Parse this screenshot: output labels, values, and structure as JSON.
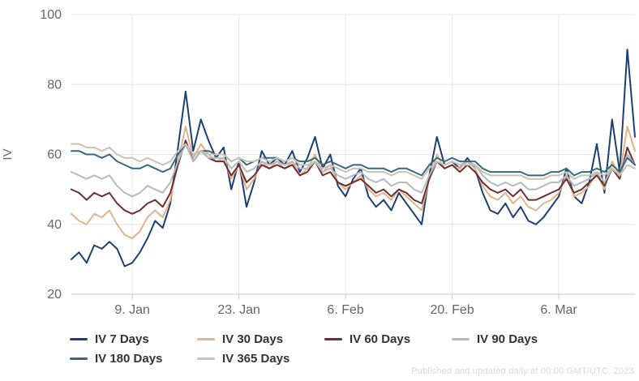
{
  "watermark": "Published and updated daily at 00:00 GMT/UTC, 2023",
  "theme": {
    "background": "#ffffff",
    "grid_color": "#e6e6e6",
    "axis_line_color": "#c8c8c8",
    "tick_color": "#c8c8c8",
    "axis_text_color": "#666666",
    "legend_text_color": "#333333",
    "watermark_color": "#d8d8d8"
  },
  "chart_data": {
    "type": "line",
    "title": "",
    "xlabel": "",
    "ylabel": "IV",
    "ylim": [
      20,
      100
    ],
    "yticks": [
      20,
      40,
      60,
      80,
      100
    ],
    "grid": true,
    "legend_position": "bottom-left",
    "x_count": 75,
    "x_unit": "days (1. Jan – 16. Mar)",
    "xticks": [
      {
        "index": 8,
        "label": "9. Jan"
      },
      {
        "index": 22,
        "label": "23. Jan"
      },
      {
        "index": 36,
        "label": "6. Feb"
      },
      {
        "index": 50,
        "label": "20. Feb"
      },
      {
        "index": 64,
        "label": "6. Mar"
      }
    ],
    "series": [
      {
        "name": "IV 7 Days",
        "color": "#1c3f73",
        "values": [
          30,
          32,
          29,
          34,
          33,
          35,
          33,
          28,
          29,
          32,
          36,
          41,
          39,
          46,
          62,
          78,
          61,
          70,
          64,
          59,
          62,
          50,
          58,
          45,
          52,
          61,
          57,
          59,
          57,
          61,
          55,
          59,
          65,
          56,
          60,
          51,
          48,
          53,
          56,
          48,
          45,
          47,
          44,
          49,
          46,
          43,
          40,
          54,
          65,
          57,
          58,
          56,
          59,
          56,
          49,
          44,
          43,
          46,
          42,
          45,
          41,
          40,
          42,
          45,
          48,
          56,
          48,
          46,
          52,
          63,
          49,
          70,
          55,
          90,
          65
        ]
      },
      {
        "name": "IV 30 Days",
        "color": "#e2b38b",
        "values": [
          43,
          41,
          40,
          43,
          42,
          44,
          40,
          37,
          36,
          38,
          42,
          44,
          42,
          47,
          58,
          68,
          59,
          63,
          60,
          58,
          59,
          53,
          57,
          50,
          53,
          58,
          56,
          58,
          56,
          58,
          54,
          56,
          60,
          55,
          57,
          52,
          50,
          52,
          54,
          50,
          48,
          49,
          47,
          50,
          48,
          46,
          44,
          53,
          60,
          56,
          57,
          56,
          58,
          56,
          51,
          48,
          47,
          49,
          46,
          48,
          45,
          44,
          46,
          47,
          49,
          54,
          48,
          49,
          51,
          55,
          50,
          58,
          54,
          68,
          61
        ]
      },
      {
        "name": "IV 60 Days",
        "color": "#6d2f2f",
        "values": [
          50,
          49,
          47,
          49,
          48,
          49,
          46,
          44,
          43,
          44,
          46,
          47,
          45,
          49,
          57,
          64,
          58,
          61,
          59,
          58,
          58,
          54,
          57,
          52,
          54,
          57,
          56,
          57,
          56,
          57,
          54,
          55,
          58,
          54,
          55,
          52,
          51,
          52,
          53,
          51,
          49,
          50,
          48,
          50,
          49,
          47,
          46,
          53,
          58,
          56,
          57,
          55,
          57,
          55,
          52,
          50,
          49,
          50,
          48,
          50,
          47,
          47,
          48,
          49,
          50,
          53,
          49,
          50,
          52,
          54,
          51,
          56,
          53,
          62,
          57
        ]
      },
      {
        "name": "IV 90 Days",
        "color": "#b4bac4",
        "values": [
          55,
          54,
          53,
          54,
          53,
          54,
          51,
          49,
          48,
          49,
          51,
          50,
          49,
          52,
          58,
          63,
          58,
          61,
          59,
          59,
          59,
          56,
          58,
          55,
          56,
          58,
          57,
          58,
          57,
          58,
          56,
          56,
          58,
          55,
          56,
          54,
          53,
          54,
          55,
          53,
          52,
          53,
          51,
          52,
          52,
          50,
          49,
          54,
          58,
          57,
          58,
          57,
          58,
          57,
          54,
          52,
          51,
          52,
          51,
          52,
          50,
          50,
          51,
          52,
          52,
          54,
          51,
          52,
          53,
          55,
          52,
          56,
          54,
          60,
          57
        ]
      },
      {
        "name": "IV 180 Days",
        "color": "#356a7d",
        "values": [
          61,
          61,
          60,
          60,
          59,
          60,
          58,
          57,
          56,
          56,
          57,
          56,
          55,
          56,
          60,
          63,
          60,
          61,
          61,
          60,
          60,
          58,
          59,
          57,
          58,
          59,
          59,
          59,
          58,
          59,
          58,
          58,
          59,
          57,
          58,
          57,
          56,
          57,
          57,
          56,
          56,
          56,
          55,
          56,
          56,
          55,
          54,
          57,
          59,
          58,
          59,
          58,
          58,
          58,
          56,
          55,
          55,
          55,
          55,
          55,
          54,
          54,
          54,
          55,
          55,
          56,
          54,
          55,
          55,
          56,
          55,
          57,
          55,
          59,
          57
        ]
      },
      {
        "name": "IV 365 Days",
        "color": "#c9c2b3",
        "values": [
          63,
          63,
          62,
          62,
          61,
          62,
          60,
          59,
          59,
          58,
          59,
          58,
          57,
          58,
          61,
          63,
          60,
          61,
          60,
          60,
          60,
          58,
          59,
          58,
          58,
          59,
          58,
          59,
          58,
          59,
          57,
          57,
          58,
          56,
          57,
          56,
          55,
          56,
          56,
          55,
          55,
          55,
          54,
          55,
          55,
          54,
          53,
          56,
          58,
          57,
          58,
          57,
          57,
          57,
          55,
          54,
          54,
          54,
          54,
          54,
          53,
          53,
          53,
          54,
          54,
          55,
          53,
          54,
          54,
          55,
          54,
          56,
          54,
          57,
          56
        ]
      }
    ]
  }
}
